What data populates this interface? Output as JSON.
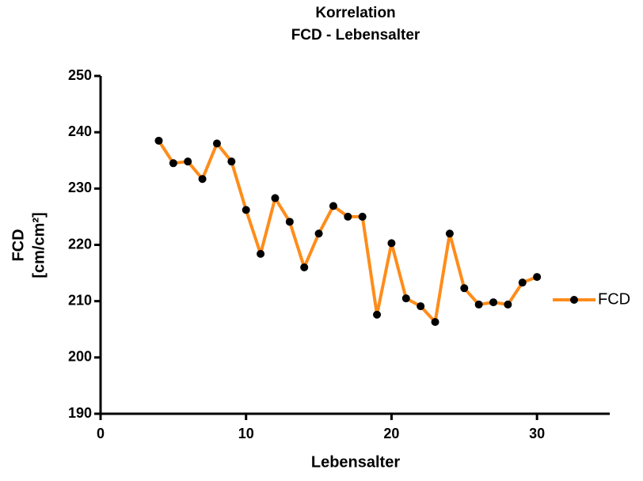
{
  "chart_data": {
    "type": "line",
    "title": [
      "Korrelation",
      "FCD - Lebensalter"
    ],
    "x_label": "Lebensalter",
    "y_label": [
      "FCD",
      "[cm/cm²]"
    ],
    "x": [
      4,
      5,
      6,
      7,
      8,
      9,
      10,
      11,
      12,
      13,
      14,
      15,
      16,
      17,
      18,
      19,
      20,
      21,
      22,
      23,
      24,
      25,
      26,
      27,
      28,
      29,
      30
    ],
    "series": [
      {
        "name": "FCD",
        "color": "#ff8c1a",
        "marker_color": "#000000",
        "values": [
          238.5,
          234.5,
          234.8,
          231.7,
          238.0,
          234.8,
          226.2,
          218.4,
          228.3,
          224.1,
          216.0,
          222.0,
          226.9,
          225.0,
          225.0,
          207.6,
          220.3,
          210.5,
          209.1,
          206.3,
          222.0,
          212.3,
          209.4,
          209.8,
          209.4,
          213.3,
          214.3
        ]
      }
    ],
    "xlim": [
      0,
      35
    ],
    "xticks": [
      0,
      10,
      20,
      30
    ],
    "ylim": [
      190,
      250
    ],
    "yticks": [
      190,
      200,
      210,
      220,
      230,
      240,
      250
    ],
    "grid": false,
    "legend": "right"
  }
}
